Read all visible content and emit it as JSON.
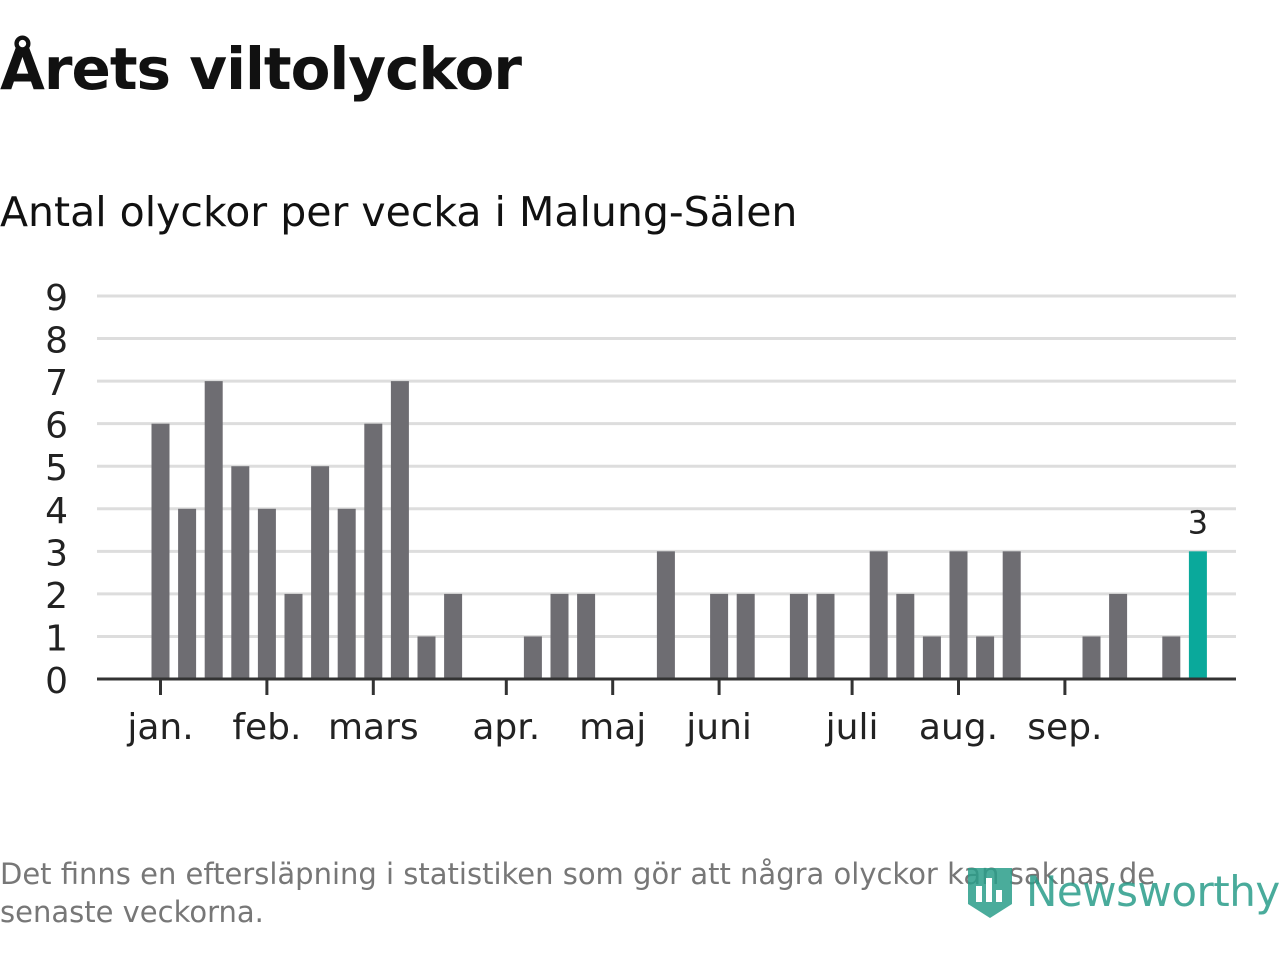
{
  "title": "Årets viltolyckor",
  "subtitle": "Antal olyckor per vecka i Malung-Sälen",
  "footnote": "Det finns en eftersläpning i statistiken som gör att några olyckor kan saknas de senaste veckorna.",
  "logo": {
    "text": "Newsworthy",
    "icon": "newsworthy-logo-icon"
  },
  "colors": {
    "bar": "#6e6d72",
    "highlight": "#0aa99b",
    "grid": "#dddddd",
    "axis": "#333333",
    "text": "#222222"
  },
  "chart_data": {
    "type": "bar",
    "ylim": [
      0,
      9
    ],
    "yticks": [
      0,
      1,
      2,
      3,
      4,
      5,
      6,
      7,
      8,
      9
    ],
    "grid": true,
    "legend": "none",
    "weeks": [
      1,
      2,
      3,
      4,
      5,
      6,
      7,
      8,
      9,
      10,
      11,
      12,
      13,
      14,
      15,
      16,
      17,
      18,
      19,
      20,
      21,
      22,
      23,
      24,
      25,
      26,
      27,
      28,
      29,
      30,
      31,
      32,
      33,
      34,
      35,
      36,
      37,
      38,
      39,
      40
    ],
    "values": [
      6,
      4,
      7,
      5,
      4,
      2,
      5,
      4,
      6,
      7,
      1,
      2,
      0,
      0,
      1,
      2,
      2,
      0,
      0,
      3,
      0,
      2,
      2,
      0,
      2,
      2,
      0,
      3,
      2,
      1,
      3,
      1,
      3,
      0,
      0,
      1,
      2,
      0,
      1,
      3
    ],
    "highlight_index": 39,
    "highlight_label": "3",
    "month_labels": [
      {
        "label": "jan.",
        "week": 1
      },
      {
        "label": "feb.",
        "week": 5
      },
      {
        "label": "mars",
        "week": 9
      },
      {
        "label": "apr.",
        "week": 14
      },
      {
        "label": "maj",
        "week": 18
      },
      {
        "label": "juni",
        "week": 22
      },
      {
        "label": "juli",
        "week": 27
      },
      {
        "label": "aug.",
        "week": 31
      },
      {
        "label": "sep.",
        "week": 35
      }
    ]
  }
}
